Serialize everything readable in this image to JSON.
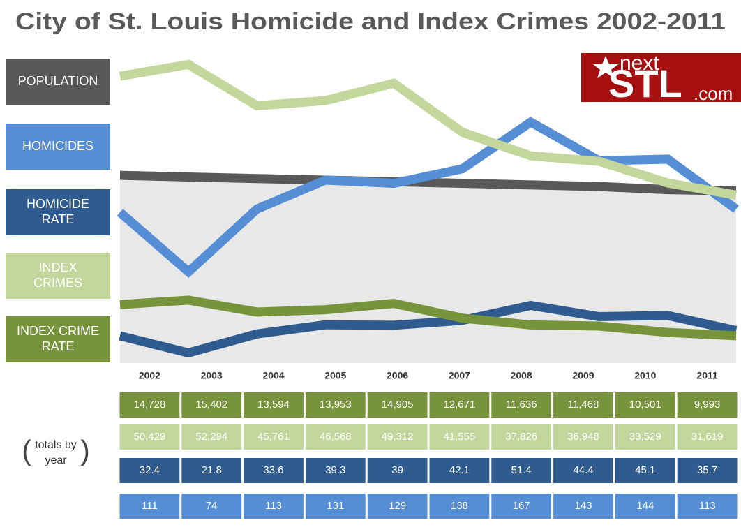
{
  "chart_data": {
    "type": "line",
    "title": "City of St. Louis Homicide and Index Crimes 2002-2011",
    "categories": [
      "2002",
      "2003",
      "2004",
      "2005",
      "2006",
      "2007",
      "2008",
      "2009",
      "2010",
      "2011"
    ],
    "series": [
      {
        "name": "POPULATION",
        "color": "#595959",
        "ylim": [
          -60000,
          566000
        ],
        "values": [
          347000,
          344000,
          341000,
          338000,
          335000,
          332000,
          329000,
          326000,
          320000,
          318000
        ]
      },
      {
        "name": "HOMICIDES",
        "color": "#558ed5",
        "ylim": [
          0,
          206
        ],
        "values": [
          111,
          74,
          113,
          131,
          129,
          138,
          167,
          143,
          144,
          113
        ]
      },
      {
        "name": "HOMICIDE\nRATE",
        "color": "#2f5b8f",
        "ylim": [
          -2,
          205
        ],
        "values": [
          32.4,
          21.8,
          33.6,
          39.3,
          39,
          42.1,
          51.4,
          44.4,
          45.1,
          35.7
        ]
      },
      {
        "name": "INDEX\nCRIMES",
        "color": "#c3d69b",
        "ylim": [
          600,
          53100
        ],
        "values": [
          50429,
          52294,
          45761,
          46568,
          49312,
          41555,
          37826,
          36948,
          33529,
          31619
        ],
        "value_labels": [
          "50,429",
          "52,294",
          "45,761",
          "46,568",
          "49,312",
          "41,555",
          "37,826",
          "36,948",
          "33,529",
          "31,619"
        ]
      },
      {
        "name": "INDEX CRIME\nRATE",
        "color": "#77933c",
        "ylim": [
          1600,
          52000
        ],
        "values": [
          14728,
          15402,
          13594,
          13953,
          14905,
          12671,
          11636,
          11468,
          10501,
          9993
        ],
        "value_labels": [
          "14,728",
          "15,402",
          "13,594",
          "13,953",
          "14,905",
          "12,671",
          "11,636",
          "11,468",
          "10,501",
          "9,993"
        ]
      }
    ],
    "table_note": "totals by year",
    "logo": {
      "prefix": "next",
      "main": "STL",
      "suffix": ".com"
    }
  }
}
